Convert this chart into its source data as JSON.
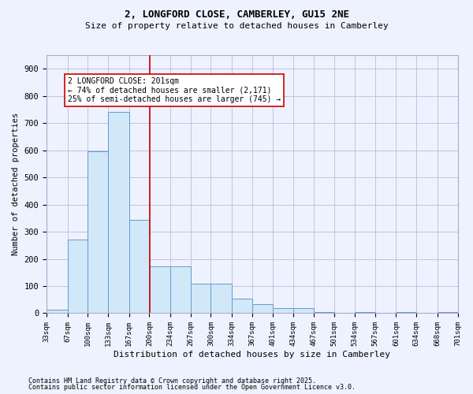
{
  "title1": "2, LONGFORD CLOSE, CAMBERLEY, GU15 2NE",
  "title2": "Size of property relative to detached houses in Camberley",
  "xlabel": "Distribution of detached houses by size in Camberley",
  "ylabel": "Number of detached properties",
  "annotation_line1": "2 LONGFORD CLOSE: 201sqm",
  "annotation_line2": "← 74% of detached houses are smaller (2,171)",
  "annotation_line3": "25% of semi-detached houses are larger (745) →",
  "property_size": 201,
  "bar_edge_color": "#6699cc",
  "bar_face_color": "#d0e8f8",
  "vline_color": "#cc0000",
  "vline_x": 201,
  "footer1": "Contains HM Land Registry data © Crown copyright and database right 2025.",
  "footer2": "Contains public sector information licensed under the Open Government Licence v3.0.",
  "bin_edges": [
    33,
    67,
    100,
    133,
    167,
    200,
    234,
    267,
    300,
    334,
    367,
    401,
    434,
    467,
    501,
    534,
    567,
    601,
    634,
    668,
    701
  ],
  "bin_counts": [
    14,
    270,
    595,
    740,
    345,
    172,
    172,
    110,
    110,
    55,
    33,
    18,
    18,
    5,
    0,
    4,
    0,
    4,
    0,
    4
  ],
  "ylim": [
    0,
    950
  ],
  "yticks": [
    0,
    100,
    200,
    300,
    400,
    500,
    600,
    700,
    800,
    900
  ],
  "background_color": "#eef2ff",
  "plot_bg_color": "#eef2ff",
  "grid_color": "#bbbbdd"
}
